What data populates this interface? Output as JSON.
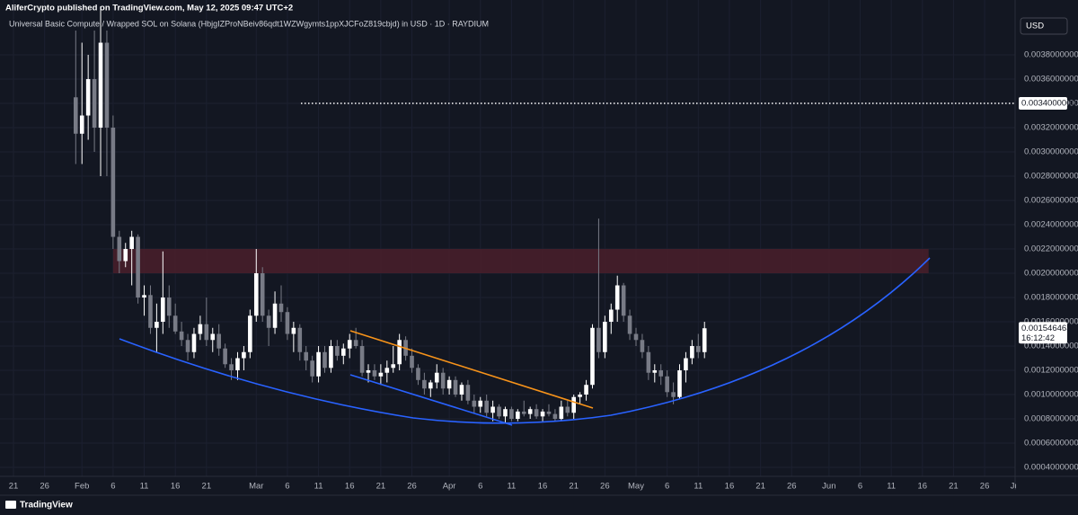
{
  "header": {
    "publisher": "AliferCrypto published on TradingView.com, May 12, 2025 09:47 UTC+2"
  },
  "currency_button": "USD",
  "footer": {
    "brand": "TradingView"
  },
  "chart_data": {
    "type": "candlestick",
    "title": "Universal Basic Compute / Wrapped SOL on Solana (HbjgIZProNBeiv86qdt1WZWgymts1ppXJCFoZ819cbjd) in USD · 1D · RAYDIUM",
    "up_color": "#ffffff",
    "down_color": "#787b86",
    "ylim": [
      0.000326,
      0.004252
    ],
    "yticks": [
      {
        "value": 0.0004,
        "label": "0.0004000000"
      },
      {
        "value": 0.0006,
        "label": "0.0006000000"
      },
      {
        "value": 0.0008,
        "label": "0.0008000000"
      },
      {
        "value": 0.001,
        "label": "0.0010000000"
      },
      {
        "value": 0.0012,
        "label": "0.0012000000"
      },
      {
        "value": 0.0014,
        "label": "0.0014000000"
      },
      {
        "value": 0.0016,
        "label": "0.0016000000"
      },
      {
        "value": 0.0018,
        "label": "0.0018000000"
      },
      {
        "value": 0.002,
        "label": "0.0020000000"
      },
      {
        "value": 0.0022,
        "label": "0.0022000000"
      },
      {
        "value": 0.0024,
        "label": "0.0024000000"
      },
      {
        "value": 0.0026,
        "label": "0.0026000000"
      },
      {
        "value": 0.0028,
        "label": "0.0028000000"
      },
      {
        "value": 0.003,
        "label": "0.0030000000"
      },
      {
        "value": 0.0032,
        "label": "0.0032000000"
      },
      {
        "value": 0.0034,
        "label": "0.0034000000"
      },
      {
        "value": 0.0036,
        "label": "0.0036000000"
      },
      {
        "value": 0.0038,
        "label": "0.0038000000"
      }
    ],
    "xticks": [
      {
        "value": "2025-01-21",
        "label": "21"
      },
      {
        "value": "2025-01-26",
        "label": "26"
      },
      {
        "value": "2025-02-01",
        "label": "Feb"
      },
      {
        "value": "2025-02-06",
        "label": "6"
      },
      {
        "value": "2025-02-11",
        "label": "11"
      },
      {
        "value": "2025-02-16",
        "label": "16"
      },
      {
        "value": "2025-02-21",
        "label": "21"
      },
      {
        "value": "2025-03-01",
        "label": "Mar"
      },
      {
        "value": "2025-03-06",
        "label": "6"
      },
      {
        "value": "2025-03-11",
        "label": "11"
      },
      {
        "value": "2025-03-16",
        "label": "16"
      },
      {
        "value": "2025-03-21",
        "label": "21"
      },
      {
        "value": "2025-03-26",
        "label": "26"
      },
      {
        "value": "2025-04-01",
        "label": "Apr"
      },
      {
        "value": "2025-04-06",
        "label": "6"
      },
      {
        "value": "2025-04-11",
        "label": "11"
      },
      {
        "value": "2025-04-16",
        "label": "16"
      },
      {
        "value": "2025-04-21",
        "label": "21"
      },
      {
        "value": "2025-04-26",
        "label": "26"
      },
      {
        "value": "2025-05-01",
        "label": "May"
      },
      {
        "value": "2025-05-06",
        "label": "6"
      },
      {
        "value": "2025-05-11",
        "label": "11"
      },
      {
        "value": "2025-05-16",
        "label": "16"
      },
      {
        "value": "2025-05-21",
        "label": "21"
      },
      {
        "value": "2025-05-26",
        "label": "26"
      },
      {
        "value": "2025-06-01",
        "label": "Jun"
      },
      {
        "value": "2025-06-06",
        "label": "6"
      },
      {
        "value": "2025-06-11",
        "label": "11"
      },
      {
        "value": "2025-06-16",
        "label": "16"
      },
      {
        "value": "2025-06-21",
        "label": "21"
      },
      {
        "value": "2025-06-26",
        "label": "26"
      },
      {
        "value": "2025-07-01",
        "label": "Jul"
      }
    ],
    "price_line": {
      "value": 0.0034,
      "label": "0.0034000000"
    },
    "last_price": 0.001546463,
    "countdown": "16:12:42",
    "zone": {
      "low": 0.002,
      "high": 0.0022,
      "start": "2025-02-06",
      "end": "2025-06-17",
      "color": "#4a1f2a"
    },
    "x": [
      "2025-01-31",
      "2025-02-01",
      "2025-02-02",
      "2025-02-03",
      "2025-02-04",
      "2025-02-05",
      "2025-02-06",
      "2025-02-07",
      "2025-02-08",
      "2025-02-09",
      "2025-02-10",
      "2025-02-11",
      "2025-02-12",
      "2025-02-13",
      "2025-02-14",
      "2025-02-15",
      "2025-02-16",
      "2025-02-17",
      "2025-02-18",
      "2025-02-19",
      "2025-02-20",
      "2025-02-21",
      "2025-02-22",
      "2025-02-23",
      "2025-02-24",
      "2025-02-25",
      "2025-02-26",
      "2025-02-27",
      "2025-02-28",
      "2025-03-01",
      "2025-03-02",
      "2025-03-03",
      "2025-03-04",
      "2025-03-05",
      "2025-03-06",
      "2025-03-07",
      "2025-03-08",
      "2025-03-09",
      "2025-03-10",
      "2025-03-11",
      "2025-03-12",
      "2025-03-13",
      "2025-03-14",
      "2025-03-15",
      "2025-03-16",
      "2025-03-17",
      "2025-03-18",
      "2025-03-19",
      "2025-03-20",
      "2025-03-21",
      "2025-03-22",
      "2025-03-23",
      "2025-03-24",
      "2025-03-25",
      "2025-03-26",
      "2025-03-27",
      "2025-03-28",
      "2025-03-29",
      "2025-03-30",
      "2025-03-31",
      "2025-04-01",
      "2025-04-02",
      "2025-04-03",
      "2025-04-04",
      "2025-04-05",
      "2025-04-06",
      "2025-04-07",
      "2025-04-08",
      "2025-04-09",
      "2025-04-10",
      "2025-04-11",
      "2025-04-12",
      "2025-04-13",
      "2025-04-14",
      "2025-04-15",
      "2025-04-16",
      "2025-04-17",
      "2025-04-18",
      "2025-04-19",
      "2025-04-20",
      "2025-04-21",
      "2025-04-22",
      "2025-04-23",
      "2025-04-24",
      "2025-04-25",
      "2025-04-26",
      "2025-04-27",
      "2025-04-28",
      "2025-04-29",
      "2025-04-30",
      "2025-05-01",
      "2025-05-02",
      "2025-05-03",
      "2025-05-04",
      "2025-05-05",
      "2025-05-06",
      "2025-05-07",
      "2025-05-08",
      "2025-05-09",
      "2025-05-10",
      "2025-05-11",
      "2025-05-12"
    ],
    "open": [
      0.00345,
      0.00315,
      0.0033,
      0.0036,
      0.0032,
      0.0039,
      0.0032,
      0.0023,
      0.0021,
      0.0022,
      0.0023,
      0.0018,
      0.00182,
      0.00155,
      0.0016,
      0.0018,
      0.00165,
      0.00152,
      0.00145,
      0.00135,
      0.0015,
      0.00158,
      0.00145,
      0.0015,
      0.00138,
      0.00125,
      0.0012,
      0.0013,
      0.00135,
      0.00165,
      0.002,
      0.00165,
      0.00155,
      0.00175,
      0.00168,
      0.0015,
      0.00155,
      0.00135,
      0.00128,
      0.00115,
      0.00135,
      0.00122,
      0.0014,
      0.00132,
      0.00138,
      0.00145,
      0.0014,
      0.00118,
      0.0012,
      0.00115,
      0.00118,
      0.00122,
      0.00125,
      0.00145,
      0.00132,
      0.00122,
      0.00112,
      0.00105,
      0.0011,
      0.00118,
      0.00105,
      0.00112,
      0.001,
      0.00108,
      0.00095,
      0.0009,
      0.00095,
      0.00085,
      0.0009,
      0.00082,
      0.00088,
      0.0008,
      0.00086,
      0.00084,
      0.00088,
      0.00082,
      0.00086,
      0.00084,
      0.0008,
      0.0009,
      0.00085,
      0.00098,
      0.001,
      0.00108,
      0.00155,
      0.00135,
      0.0016,
      0.0017,
      0.0019,
      0.00165,
      0.0015,
      0.00145,
      0.00135,
      0.00118,
      0.0012,
      0.00115,
      0.00102,
      0.00098,
      0.0012,
      0.0013,
      0.0014,
      0.00135
    ],
    "high": [
      0.004,
      0.0039,
      0.0038,
      0.004,
      0.0042,
      0.004,
      0.0033,
      0.00235,
      0.00225,
      0.00235,
      0.00232,
      0.0019,
      0.0019,
      0.00175,
      0.00218,
      0.0019,
      0.00175,
      0.0016,
      0.0015,
      0.00155,
      0.00165,
      0.0018,
      0.00155,
      0.00158,
      0.00142,
      0.0013,
      0.00135,
      0.0014,
      0.0017,
      0.0022,
      0.00205,
      0.0017,
      0.00185,
      0.0019,
      0.00172,
      0.0016,
      0.00158,
      0.0014,
      0.00132,
      0.0014,
      0.0014,
      0.00145,
      0.00145,
      0.00142,
      0.0015,
      0.00155,
      0.00145,
      0.00125,
      0.00125,
      0.00125,
      0.00128,
      0.0014,
      0.0015,
      0.00148,
      0.00138,
      0.00125,
      0.00118,
      0.00112,
      0.00125,
      0.00122,
      0.00115,
      0.00115,
      0.0011,
      0.00112,
      0.001,
      0.00098,
      0.001,
      0.00095,
      0.00092,
      0.0009,
      0.0009,
      0.00088,
      0.00095,
      0.0009,
      0.00092,
      0.00088,
      0.00092,
      0.00088,
      0.00095,
      0.00095,
      0.001,
      0.00102,
      0.00112,
      0.00158,
      0.00245,
      0.00165,
      0.00175,
      0.00198,
      0.00192,
      0.0017,
      0.00155,
      0.0015,
      0.0014,
      0.00125,
      0.00125,
      0.0012,
      0.0011,
      0.00125,
      0.00135,
      0.00145,
      0.0015,
      0.0016
    ],
    "low": [
      0.0029,
      0.0029,
      0.0031,
      0.003,
      0.0028,
      0.0028,
      0.0022,
      0.002,
      0.00205,
      0.0019,
      0.00175,
      0.00165,
      0.0015,
      0.00135,
      0.0015,
      0.00155,
      0.0015,
      0.0014,
      0.00128,
      0.0013,
      0.00145,
      0.0014,
      0.00135,
      0.00132,
      0.00122,
      0.00112,
      0.00112,
      0.0012,
      0.0013,
      0.0016,
      0.0016,
      0.0014,
      0.0015,
      0.0016,
      0.00145,
      0.00135,
      0.00128,
      0.0012,
      0.0011,
      0.0011,
      0.00118,
      0.00118,
      0.00128,
      0.00125,
      0.0013,
      0.00138,
      0.00115,
      0.0011,
      0.00112,
      0.00108,
      0.0011,
      0.00118,
      0.0012,
      0.00128,
      0.00118,
      0.00108,
      0.001,
      0.00098,
      0.00105,
      0.001,
      0.001,
      0.00098,
      0.00095,
      0.00092,
      0.00085,
      0.00085,
      0.00082,
      0.00078,
      0.0008,
      0.00076,
      0.00078,
      0.00078,
      0.00082,
      0.0008,
      0.0008,
      0.00078,
      0.00082,
      0.00078,
      0.00078,
      0.00082,
      0.0008,
      0.00092,
      0.00095,
      0.00105,
      0.0013,
      0.0013,
      0.0015,
      0.0016,
      0.0016,
      0.00145,
      0.0014,
      0.0013,
      0.00112,
      0.0011,
      0.00108,
      0.00098,
      0.00092,
      0.00096,
      0.0011,
      0.00125,
      0.0013,
      0.0013
    ],
    "close": [
      0.00315,
      0.0033,
      0.0036,
      0.0032,
      0.0039,
      0.0032,
      0.0023,
      0.0021,
      0.0022,
      0.0023,
      0.0018,
      0.00182,
      0.00155,
      0.0016,
      0.0018,
      0.00165,
      0.00152,
      0.00145,
      0.00135,
      0.0015,
      0.00158,
      0.00145,
      0.0015,
      0.00138,
      0.00125,
      0.0012,
      0.0013,
      0.00135,
      0.00165,
      0.002,
      0.00165,
      0.00155,
      0.00175,
      0.00168,
      0.0015,
      0.00155,
      0.00135,
      0.00128,
      0.00115,
      0.00135,
      0.00122,
      0.0014,
      0.00132,
      0.00138,
      0.00145,
      0.0014,
      0.00118,
      0.0012,
      0.00115,
      0.00118,
      0.00122,
      0.00125,
      0.00145,
      0.00132,
      0.00122,
      0.00112,
      0.00105,
      0.0011,
      0.00118,
      0.00105,
      0.00112,
      0.001,
      0.00108,
      0.00095,
      0.0009,
      0.00095,
      0.00085,
      0.0009,
      0.00082,
      0.00088,
      0.0008,
      0.00086,
      0.00084,
      0.00088,
      0.00082,
      0.00086,
      0.00084,
      0.0008,
      0.0009,
      0.00085,
      0.00098,
      0.001,
      0.00108,
      0.00155,
      0.00135,
      0.0016,
      0.0017,
      0.0019,
      0.00165,
      0.0015,
      0.00145,
      0.00135,
      0.00118,
      0.0012,
      0.00115,
      0.00102,
      0.00098,
      0.0012,
      0.0013,
      0.0014,
      0.00135,
      0.001546463
    ]
  }
}
